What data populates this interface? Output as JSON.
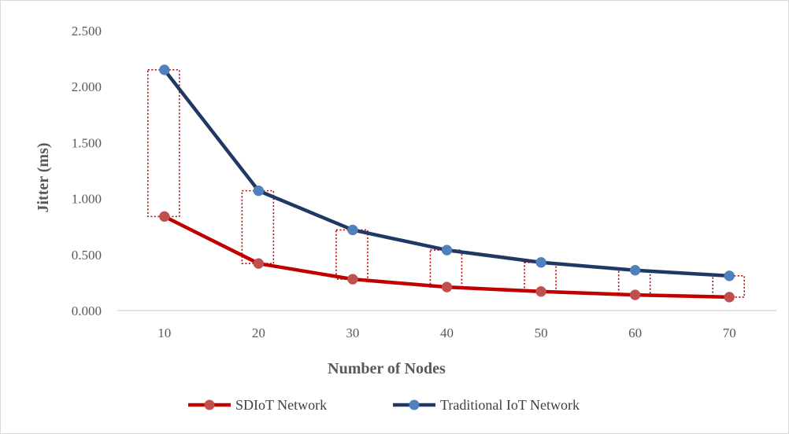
{
  "chart_data": {
    "type": "line",
    "title": "",
    "xlabel": "Number of Nodes",
    "ylabel": "Jitter (ms)",
    "categories": [
      "10",
      "20",
      "30",
      "40",
      "50",
      "60",
      "70"
    ],
    "y_ticks": [
      "0.000",
      "0.500",
      "1.000",
      "1.500",
      "2.000",
      "2.500"
    ],
    "ylim": [
      0,
      2.5
    ],
    "grid": false,
    "legend_position": "bottom",
    "series": [
      {
        "name": "SDIoT Network",
        "color": "#c00000",
        "values": [
          0.84,
          0.42,
          0.28,
          0.21,
          0.17,
          0.14,
          0.12
        ]
      },
      {
        "name": "Traditional IoT Network",
        "color": "#1f3864",
        "values": [
          2.15,
          1.07,
          0.72,
          0.54,
          0.43,
          0.36,
          0.31
        ]
      }
    ],
    "annotations": "red dotted boxes spanning the gap between the two series at each node count",
    "marker_colors": {
      "SDIoT Network": "#c0504d",
      "Traditional IoT Network": "#4f81bd"
    },
    "annotation_color": "#c00000"
  }
}
